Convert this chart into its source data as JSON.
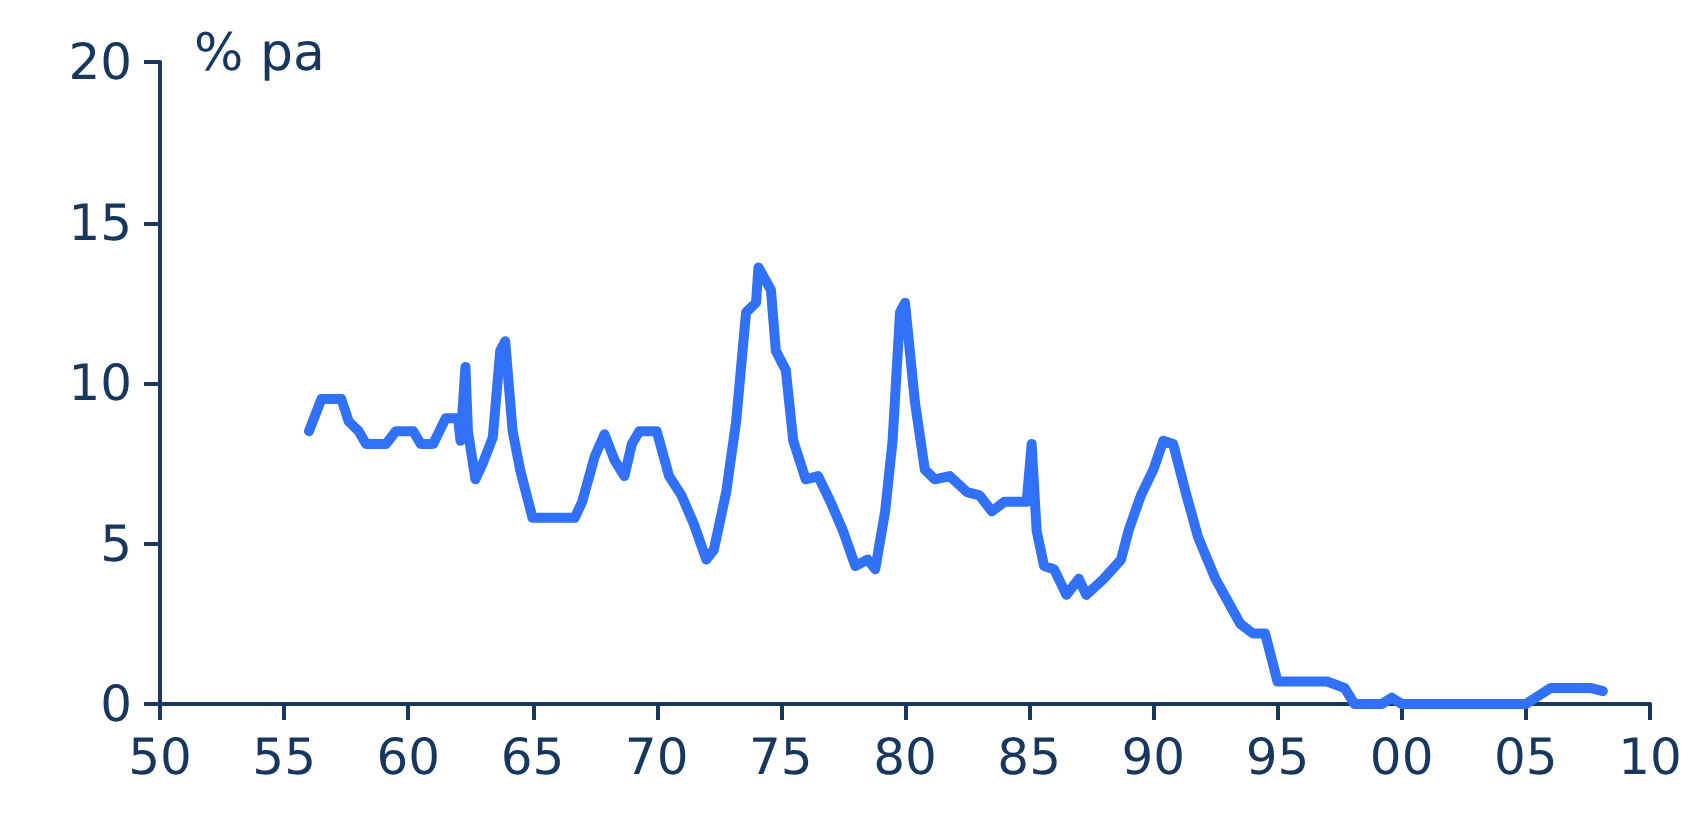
{
  "chart_data": {
    "type": "line",
    "ylabel": "% pa",
    "grid": false,
    "marker": "none",
    "line_style": "solid",
    "xlim": [
      1950,
      2010
    ],
    "xticks": [
      {
        "value": 1950,
        "label": "50"
      },
      {
        "value": 1955,
        "label": "55"
      },
      {
        "value": 1960,
        "label": "60"
      },
      {
        "value": 1965,
        "label": "65"
      },
      {
        "value": 1970,
        "label": "70"
      },
      {
        "value": 1975,
        "label": "75"
      },
      {
        "value": 1980,
        "label": "80"
      },
      {
        "value": 1985,
        "label": "85"
      },
      {
        "value": 1990,
        "label": "90"
      },
      {
        "value": 1995,
        "label": "95"
      },
      {
        "value": 2000,
        "label": "00"
      },
      {
        "value": 2005,
        "label": "05"
      },
      {
        "value": 2010,
        "label": "10"
      }
    ],
    "ylim": [
      0,
      20
    ],
    "yticks": [
      0,
      5,
      10,
      15,
      20
    ],
    "series": [
      {
        "color": "#3071f7",
        "x": [
          1956.0,
          1956.5,
          1957.3,
          1957.6,
          1958,
          1958.3,
          1959.1,
          1959.5,
          1960.2,
          1960.5,
          1961,
          1961.5,
          1962.0,
          1962.1,
          1962.3,
          1962.4,
          1962.7,
          1963,
          1963.4,
          1963.7,
          1963.9,
          1964.2,
          1964.5,
          1965,
          1966.7,
          1967,
          1967.5,
          1967.9,
          1968.3,
          1968.7,
          1969,
          1969.3,
          1970,
          1970.5,
          1971,
          1971.5,
          1972,
          1972.3,
          1972.8,
          1973.2,
          1973.6,
          1974,
          1974.1,
          1974.6,
          1974.8,
          1975.2,
          1975.5,
          1976,
          1976.5,
          1977,
          1977.5,
          1978,
          1978.5,
          1978.8,
          1979.2,
          1979.5,
          1979.8,
          1980,
          1980.4,
          1980.8,
          1981.2,
          1981.8,
          1982.5,
          1983,
          1983.5,
          1984,
          1984.5,
          1984.9,
          1985.1,
          1985.3,
          1985.6,
          1986,
          1986.5,
          1987,
          1987.3,
          1988,
          1988.7,
          1989,
          1989.5,
          1990,
          1990.4,
          1990.8,
          1991.3,
          1991.8,
          1992.5,
          1993,
          1993.5,
          1994,
          1994.5,
          1995,
          1996,
          1997,
          1997.7,
          1998.1,
          1999.2,
          1999.6,
          2000,
          2005,
          2005.6,
          2006,
          2007.6,
          2008.1
        ],
        "values": [
          8.5,
          9.5,
          9.5,
          8.8,
          8.5,
          8.1,
          8.1,
          8.5,
          8.5,
          8.1,
          8.1,
          8.9,
          8.9,
          8.2,
          10.5,
          8.5,
          7.0,
          7.5,
          8.3,
          11.0,
          11.3,
          8.5,
          7.3,
          5.8,
          5.8,
          6.3,
          7.7,
          8.4,
          7.6,
          7.1,
          8.1,
          8.5,
          8.5,
          7.1,
          6.5,
          5.6,
          4.5,
          4.8,
          6.6,
          8.8,
          12.2,
          12.5,
          13.6,
          12.9,
          11.0,
          10.4,
          8.2,
          7.0,
          7.1,
          6.3,
          5.4,
          4.3,
          4.5,
          4.2,
          6.0,
          8.2,
          12.2,
          12.5,
          9.4,
          7.3,
          7.0,
          7.1,
          6.6,
          6.5,
          6.0,
          6.3,
          6.3,
          6.3,
          8.1,
          5.4,
          4.3,
          4.2,
          3.4,
          3.9,
          3.4,
          3.9,
          4.5,
          5.4,
          6.5,
          7.3,
          8.2,
          8.1,
          6.6,
          5.2,
          3.9,
          3.2,
          2.5,
          2.2,
          2.2,
          0.7,
          0.7,
          0.7,
          0.5,
          0,
          0,
          0.2,
          0,
          0,
          0.3,
          0.5,
          0.5,
          0.4
        ]
      }
    ]
  }
}
